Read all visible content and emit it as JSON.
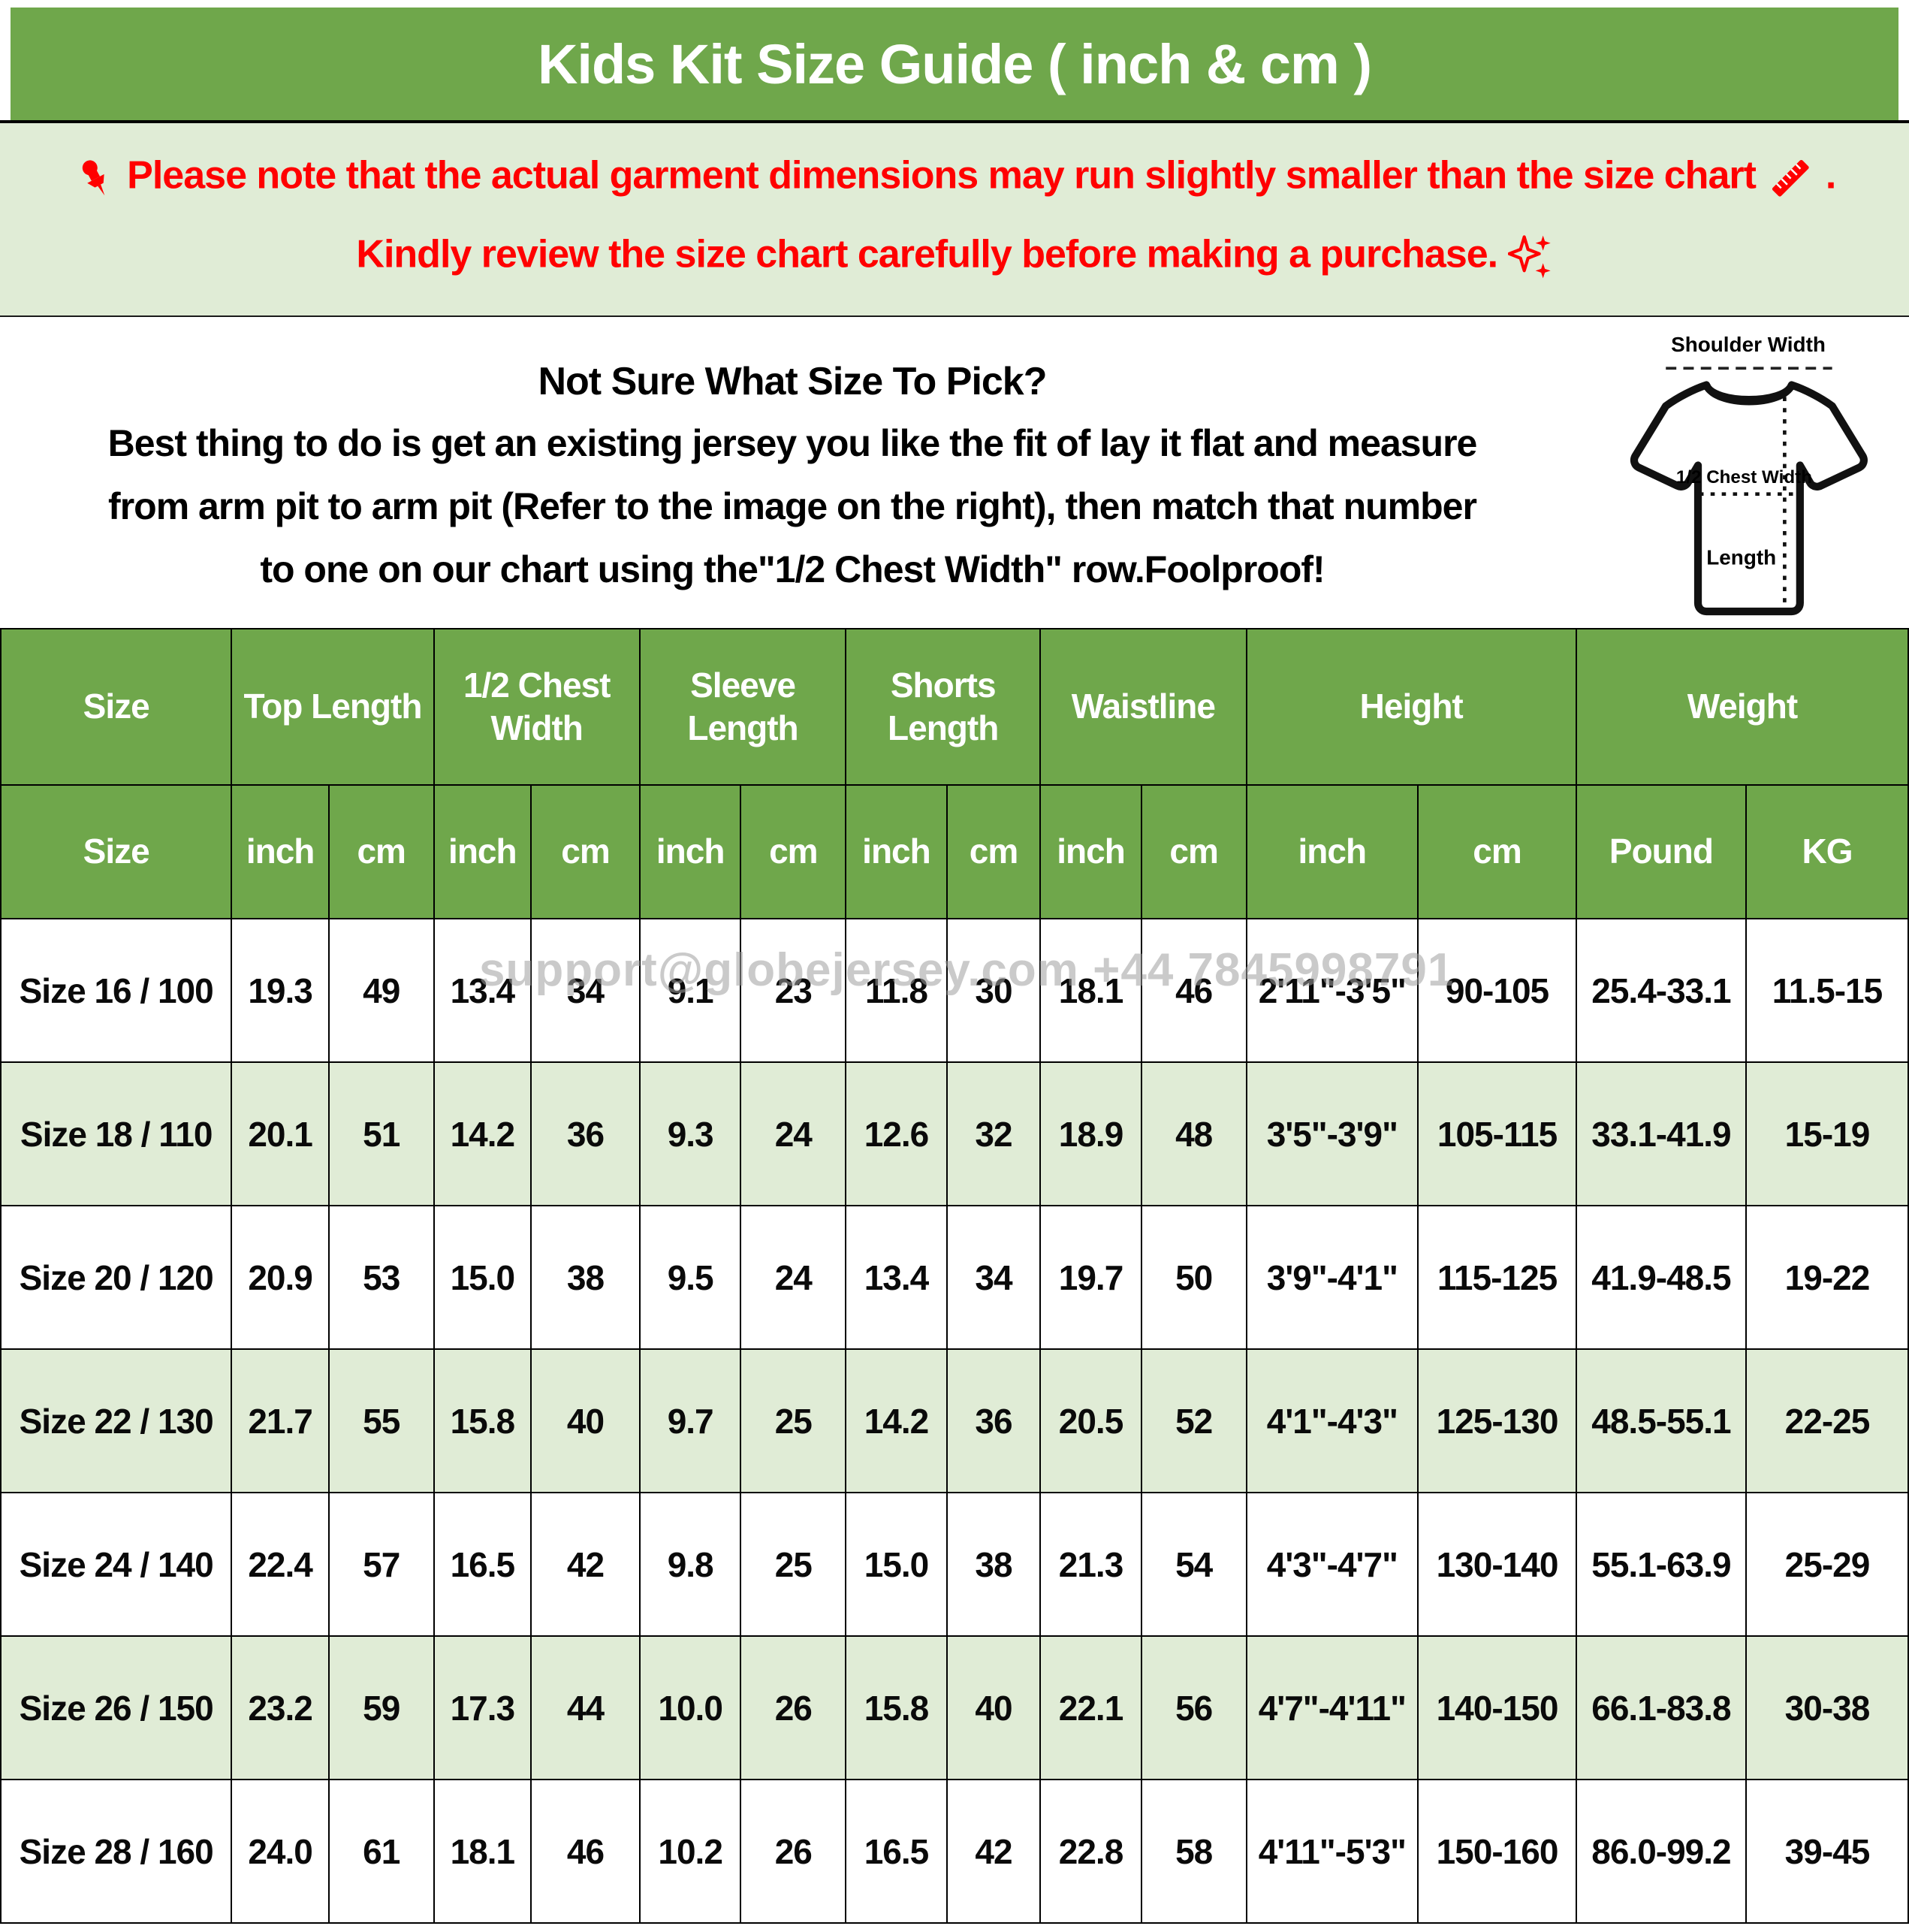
{
  "title": "Kids Kit Size Guide ( inch & cm )",
  "notice": {
    "line1": "Please note that the actual garment dimensions may run slightly smaller than the size chart",
    "line1_period": " .",
    "line2": "Kindly review the size chart carefully before making a purchase.",
    "text_color": "#ff0000"
  },
  "sizing_help": {
    "heading": "Not Sure What Size To Pick?",
    "line1": "Best thing to do is get an existing jersey you like the fit of lay it flat and measure",
    "line2": "from arm pit to arm pit (Refer to the image on the right), then match that number",
    "line3": "to one on our chart using the\"1/2 Chest Width\" row.Foolproof!"
  },
  "diagram": {
    "shoulder_label": "Shoulder Width",
    "chest_label": "1/2 Chest Width",
    "length_label": "Length"
  },
  "table": {
    "group_headers": [
      {
        "label": "Size",
        "span": 1
      },
      {
        "label": "Top Length",
        "span": 2
      },
      {
        "label": "1/2 Chest Width",
        "span": 2
      },
      {
        "label": "Sleeve Length",
        "span": 2
      },
      {
        "label": "Shorts Length",
        "span": 2
      },
      {
        "label": "Waistline",
        "span": 2
      },
      {
        "label": "Height",
        "span": 2
      },
      {
        "label": "Weight",
        "span": 2
      }
    ],
    "unit_headers": [
      "Size",
      "inch",
      "cm",
      "inch",
      "cm",
      "inch",
      "cm",
      "inch",
      "cm",
      "inch",
      "cm",
      "inch",
      "cm",
      "Pound",
      "KG"
    ],
    "rows": [
      [
        "Size 16 / 100",
        "19.3",
        "49",
        "13.4",
        "34",
        "9.1",
        "23",
        "11.8",
        "30",
        "18.1",
        "46",
        "2'11\"-3'5\"",
        "90-105",
        "25.4-33.1",
        "11.5-15"
      ],
      [
        "Size 18 / 110",
        "20.1",
        "51",
        "14.2",
        "36",
        "9.3",
        "24",
        "12.6",
        "32",
        "18.9",
        "48",
        "3'5\"-3'9\"",
        "105-115",
        "33.1-41.9",
        "15-19"
      ],
      [
        "Size 20 / 120",
        "20.9",
        "53",
        "15.0",
        "38",
        "9.5",
        "24",
        "13.4",
        "34",
        "19.7",
        "50",
        "3'9\"-4'1\"",
        "115-125",
        "41.9-48.5",
        "19-22"
      ],
      [
        "Size 22 / 130",
        "21.7",
        "55",
        "15.8",
        "40",
        "9.7",
        "25",
        "14.2",
        "36",
        "20.5",
        "52",
        "4'1\"-4'3\"",
        "125-130",
        "48.5-55.1",
        "22-25"
      ],
      [
        "Size 24 / 140",
        "22.4",
        "57",
        "16.5",
        "42",
        "9.8",
        "25",
        "15.0",
        "38",
        "21.3",
        "54",
        "4'3\"-4'7\"",
        "130-140",
        "55.1-63.9",
        "25-29"
      ],
      [
        "Size 26 / 150",
        "23.2",
        "59",
        "17.3",
        "44",
        "10.0",
        "26",
        "15.8",
        "40",
        "22.1",
        "56",
        "4'7\"-4'11\"",
        "140-150",
        "66.1-83.8",
        "30-38"
      ],
      [
        "Size 28 / 160",
        "24.0",
        "61",
        "18.1",
        "46",
        "10.2",
        "26",
        "16.5",
        "42",
        "22.8",
        "58",
        "4'11\"-5'3\"",
        "150-160",
        "86.0-99.2",
        "39-45"
      ]
    ]
  },
  "watermark": "support@globejersey.com  +44 7845998791",
  "colors": {
    "green": "#6fa74b",
    "light_green": "#e0ecd6",
    "accent_red": "#ff0000",
    "watermark_gray": "#9f9f9f"
  }
}
